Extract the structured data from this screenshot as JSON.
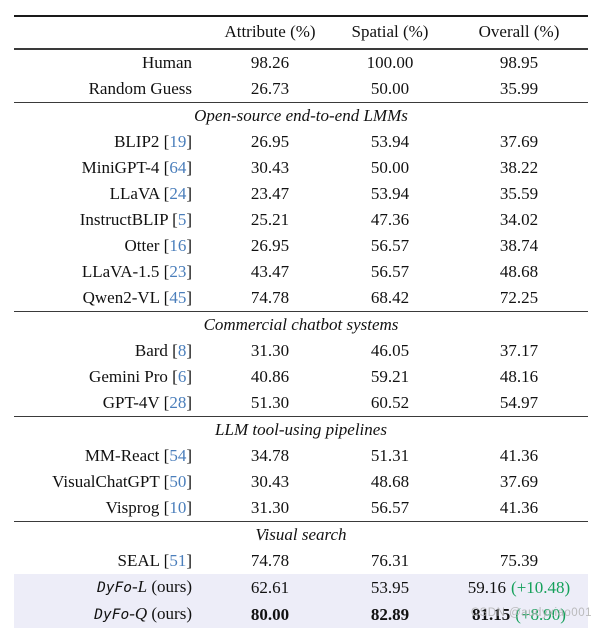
{
  "colors": {
    "citation_blue": "#4a7ebb",
    "gain_green": "#14a05a",
    "highlight_bg": "#ededf8",
    "watermark_gray": "#b2b2b2"
  },
  "watermark": {
    "text": "CSDN @audyxiao001"
  },
  "table": {
    "cite_open": " [",
    "cite_close": "]",
    "headers": [
      "",
      "Attribute (%)",
      "Spatial (%)",
      "Overall (%)"
    ],
    "sections": [
      {
        "title": null,
        "rows": [
          {
            "name": "Human",
            "attribute": "98.26",
            "spatial": "100.00",
            "overall": "98.95"
          },
          {
            "name": "Random Guess",
            "attribute": "26.73",
            "spatial": "50.00",
            "overall": "35.99"
          }
        ]
      },
      {
        "title": "Open-source end-to-end LMMs",
        "rows": [
          {
            "name": "BLIP2",
            "cite": "19",
            "attribute": "26.95",
            "spatial": "53.94",
            "overall": "37.69"
          },
          {
            "name": "MiniGPT-4",
            "cite": "64",
            "attribute": "30.43",
            "spatial": "50.00",
            "overall": "38.22"
          },
          {
            "name": "LLaVA",
            "cite": "24",
            "attribute": "23.47",
            "spatial": "53.94",
            "overall": "35.59"
          },
          {
            "name": "InstructBLIP",
            "cite": "5",
            "attribute": "25.21",
            "spatial": "47.36",
            "overall": "34.02"
          },
          {
            "name": "Otter",
            "cite": "16",
            "attribute": "26.95",
            "spatial": "56.57",
            "overall": "38.74"
          },
          {
            "name": "LLaVA-1.5",
            "cite": "23",
            "attribute": "43.47",
            "spatial": "56.57",
            "overall": "48.68"
          },
          {
            "name": "Qwen2-VL",
            "cite": "45",
            "attribute": "74.78",
            "spatial": "68.42",
            "overall": "72.25"
          }
        ]
      },
      {
        "title": "Commercial chatbot systems",
        "rows": [
          {
            "name": "Bard",
            "cite": "8",
            "attribute": "31.30",
            "spatial": "46.05",
            "overall": "37.17"
          },
          {
            "name": "Gemini Pro",
            "cite": "6",
            "attribute": "40.86",
            "spatial": "59.21",
            "overall": "48.16"
          },
          {
            "name": "GPT-4V",
            "cite": "28",
            "attribute": "51.30",
            "spatial": "60.52",
            "overall": "54.97"
          }
        ]
      },
      {
        "title": "LLM tool-using pipelines",
        "rows": [
          {
            "name": "MM-React",
            "cite": "54",
            "attribute": "34.78",
            "spatial": "51.31",
            "overall": "41.36"
          },
          {
            "name": "VisualChatGPT",
            "cite": "50",
            "attribute": "30.43",
            "spatial": "48.68",
            "overall": "37.69"
          },
          {
            "name": "Visprog",
            "cite": "10",
            "attribute": "31.30",
            "spatial": "56.57",
            "overall": "41.36"
          }
        ]
      },
      {
        "title": "Visual search",
        "rows": [
          {
            "name": "SEAL",
            "cite": "51",
            "attribute": "74.78",
            "spatial": "76.31",
            "overall": "75.39"
          },
          {
            "name_mono": "DyFo",
            "name_variant": "-L",
            "name_suffix": " (ours)",
            "attribute": "62.61",
            "spatial": "53.95",
            "overall": "59.16",
            "gain": "(+10.48)",
            "highlight": true
          },
          {
            "name_mono": "DyFo",
            "name_variant": "-Q",
            "name_suffix": " (ours)",
            "attribute": "80.00",
            "spatial": "82.89",
            "overall": "81.15",
            "gain": "(+8.90)",
            "highlight": true,
            "bold_values": true
          }
        ]
      }
    ]
  }
}
